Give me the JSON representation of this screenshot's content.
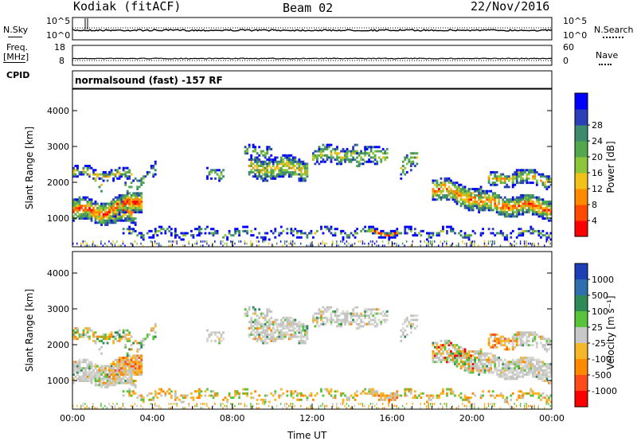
{
  "header": {
    "station": "Kodiak (fitACF)",
    "beam": "Beam 02",
    "date": "22/Nov/2016"
  },
  "strips": {
    "nsky_label": "N.Sky",
    "nsky_ticks": [
      "10^5",
      "10^0"
    ],
    "nsearch_label": "N.Search",
    "nsearch_ticks": [
      "10^5",
      "10^0"
    ],
    "freq_label_1": "Freq.",
    "freq_label_2": "[MHz]",
    "freq_ticks": [
      "18",
      "8"
    ],
    "nave_label": "Nave",
    "nave_ticks": [
      "60",
      "0"
    ],
    "cpid_label": "CPID",
    "cpid_text": "normalsound (fast) -157 RF"
  },
  "chart_data": [
    {
      "type": "heatmap",
      "name": "power",
      "ylabel": "Slant Range [km]",
      "xlabel": "",
      "ylim": [
        200,
        4600
      ],
      "yticks": [
        "1000",
        "2000",
        "3000",
        "4000"
      ],
      "colorbar_label": "Power [dB]",
      "colorbar_ticks": [
        "4",
        "8",
        "12",
        "16",
        "20",
        "24",
        "28"
      ],
      "colorbar_colors": [
        "#0000ff",
        "#2a3fb8",
        "#3d8a6e",
        "#53a84d",
        "#8cc63a",
        "#f2c21a",
        "#ff8a00",
        "#ff4a00",
        "#ff0000"
      ]
    },
    {
      "type": "heatmap",
      "name": "velocity",
      "ylabel": "Slant Range [km]",
      "xlabel": "Time UT",
      "ylim": [
        200,
        4600
      ],
      "yticks": [
        "1000",
        "2000",
        "3000",
        "4000"
      ],
      "xticks": [
        "00:00",
        "04:00",
        "08:00",
        "12:00",
        "16:00",
        "20:00",
        "00:00"
      ],
      "colorbar_label": "Velocity [m s⁻¹]",
      "colorbar_ticks": [
        "1000",
        "500",
        "100",
        "25",
        "-25",
        "-100",
        "-500",
        "-1000"
      ],
      "colorbar_colors": [
        "#1d3fb5",
        "#2f6fae",
        "#2e8b57",
        "#58c43a",
        "#c8c8c8",
        "#f5b62a",
        "#ff8a00",
        "#ff4a1a",
        "#ff0000"
      ]
    }
  ],
  "colors": {
    "ground_scatter": "#c0c0c0",
    "frame": "#000000"
  }
}
